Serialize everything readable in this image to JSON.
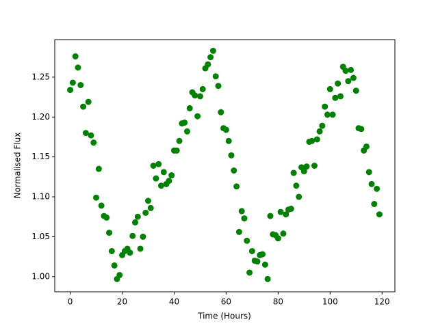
{
  "chart_data": {
    "type": "scatter",
    "xlabel": "Time (Hours)",
    "ylabel": "Normalised Flux",
    "color": "#008000",
    "x": [
      0,
      1,
      2,
      3,
      4,
      5,
      6,
      7,
      8,
      9,
      10,
      11,
      12,
      13,
      14,
      15,
      16,
      17,
      18,
      19,
      20,
      21,
      22,
      23,
      24,
      25,
      26,
      27,
      28,
      29,
      30,
      31,
      32,
      33,
      34,
      35,
      36,
      37,
      38,
      39,
      40,
      41,
      42,
      43,
      44,
      45,
      46,
      47,
      48,
      49,
      50,
      51,
      52,
      53,
      54,
      55,
      56,
      57,
      58,
      59,
      60,
      61,
      62,
      63,
      64,
      65,
      66,
      67,
      68,
      69,
      70,
      71,
      72,
      73,
      74,
      75,
      76,
      77,
      78,
      79,
      80,
      81,
      82,
      83,
      84,
      85,
      86,
      87,
      88,
      89,
      90,
      91,
      92,
      93,
      94,
      95,
      96,
      97,
      98,
      99,
      100,
      101,
      102,
      103,
      104,
      105,
      106,
      107,
      108,
      109,
      110,
      111,
      112,
      113,
      114,
      115,
      116,
      117,
      118,
      119
    ],
    "values": [
      1.234,
      1.243,
      1.276,
      1.262,
      1.24,
      1.213,
      1.18,
      1.219,
      1.177,
      1.168,
      1.099,
      1.135,
      1.089,
      1.076,
      1.074,
      1.055,
      1.032,
      1.014,
      0.997,
      1.002,
      1.027,
      1.032,
      1.035,
      1.03,
      1.051,
      1.068,
      1.075,
      1.035,
      1.05,
      1.08,
      1.095,
      1.086,
      1.139,
      1.123,
      1.141,
      1.114,
      1.131,
      1.116,
      1.12,
      1.127,
      1.158,
      1.158,
      1.17,
      1.192,
      1.193,
      1.182,
      1.211,
      1.231,
      1.227,
      1.201,
      1.226,
      1.235,
      1.261,
      1.266,
      1.275,
      1.283,
      1.251,
      1.239,
      1.206,
      1.186,
      1.184,
      1.17,
      1.152,
      1.133,
      1.113,
      1.056,
      1.082,
      1.073,
      1.045,
      1.005,
      1.032,
      1.02,
      1.019,
      1.027,
      1.028,
      1.015,
      0.997,
      1.076,
      1.053,
      1.052,
      1.048,
      1.081,
      1.054,
      1.078,
      1.084,
      1.085,
      1.13,
      1.114,
      1.1,
      1.137,
      1.132,
      1.138,
      1.169,
      1.17,
      1.139,
      1.172,
      1.182,
      1.189,
      1.213,
      1.203,
      1.235,
      1.203,
      1.224,
      1.242,
      1.226,
      1.263,
      1.258,
      1.245,
      1.259,
      1.249,
      1.233,
      1.186,
      1.185,
      1.158,
      1.163,
      1.131,
      1.116,
      1.091,
      1.11,
      1.078
    ],
    "xlim": [
      -5.95,
      124.95
    ],
    "ylim": [
      0.981,
      1.297
    ],
    "xticks": [
      0,
      20,
      40,
      60,
      80,
      100,
      120
    ],
    "yticks": [
      {
        "value": 1.0,
        "label": "1.00"
      },
      1.05,
      {
        "value": 1.1,
        "label": "1.10"
      },
      1.15,
      {
        "value": 1.2,
        "label": "1.20"
      },
      1.25
    ]
  }
}
